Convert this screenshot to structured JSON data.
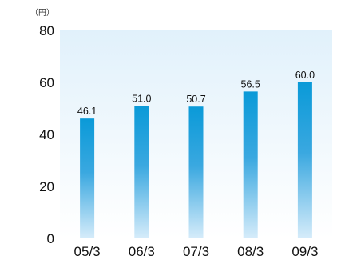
{
  "chart_data": {
    "type": "bar",
    "unit_label": "（円）",
    "categories": [
      "05/3",
      "06/3",
      "07/3",
      "08/3",
      "09/3"
    ],
    "values": [
      46.1,
      51.0,
      50.7,
      56.5,
      60.0
    ],
    "data_labels": [
      "46.1",
      "51.0",
      "50.7",
      "56.5",
      "60.0"
    ],
    "y_ticks": [
      "0",
      "20",
      "40",
      "60",
      "80"
    ],
    "ylim": [
      0,
      80
    ],
    "bar_color_top": "#0a9ad8",
    "bar_color_bottom": "#d6ecfa",
    "plot_bg_top": "#e1f1fb",
    "plot_bg_bottom": "#ffffff",
    "grid": false
  }
}
